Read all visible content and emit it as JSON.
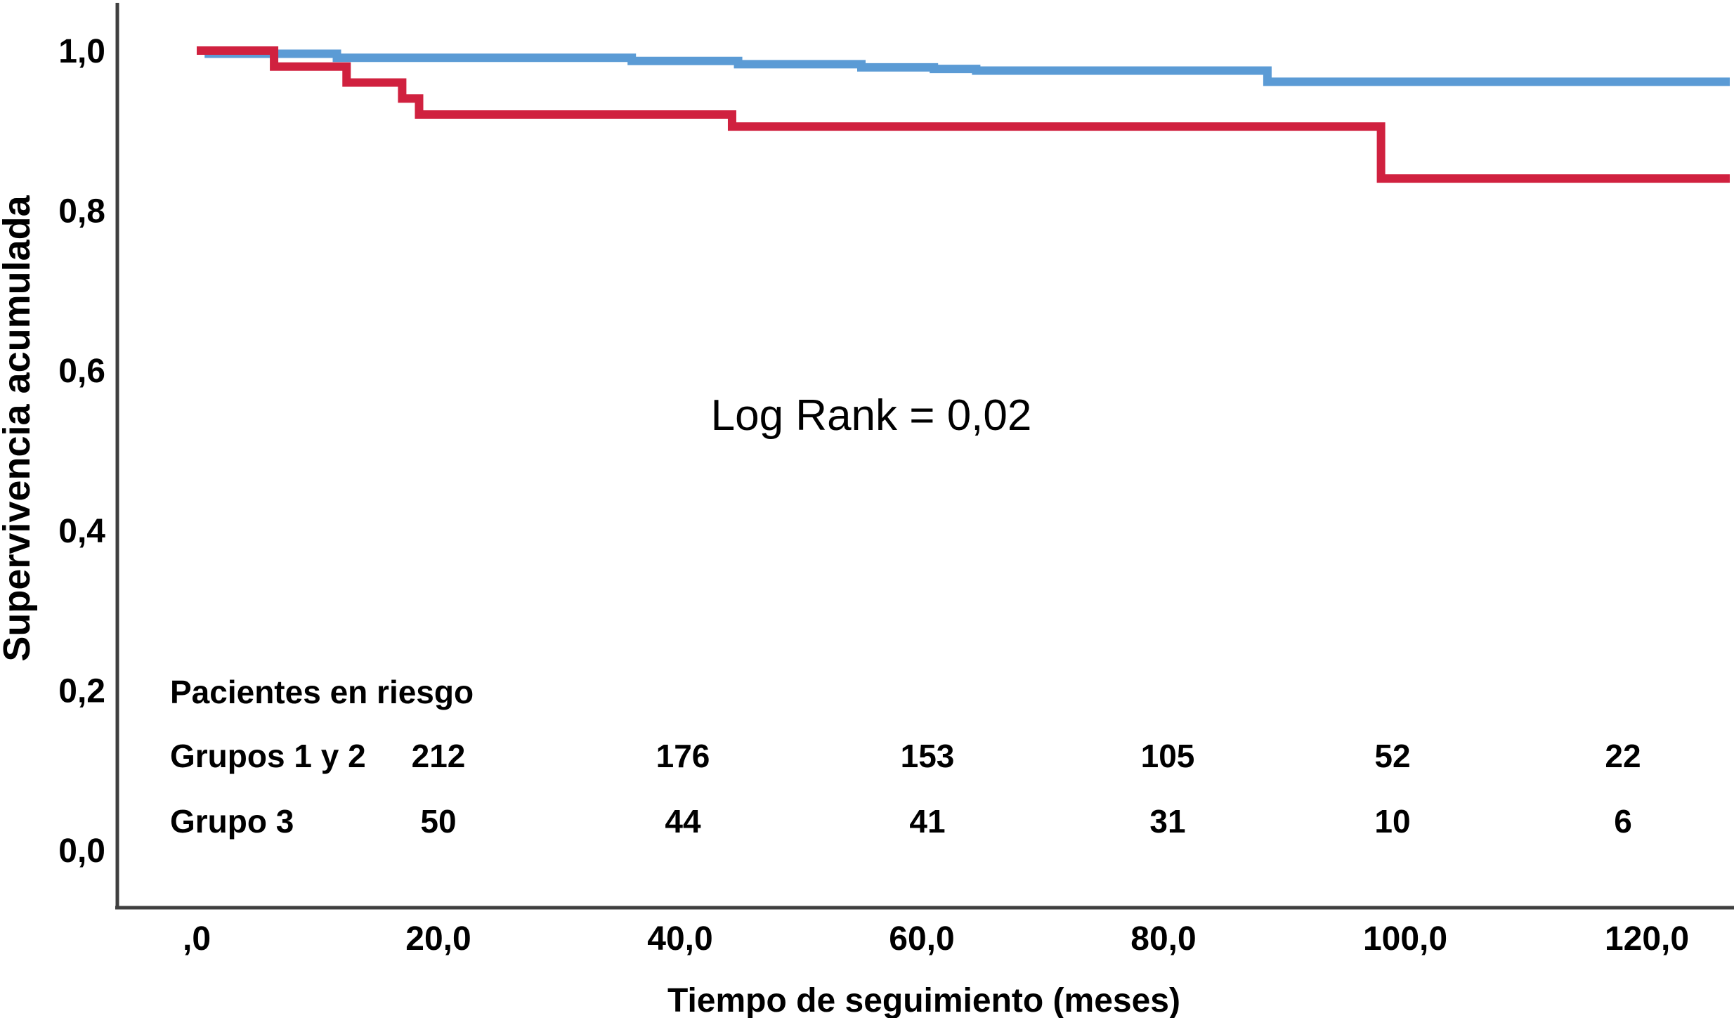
{
  "chart_data": {
    "type": "line",
    "subtype": "kaplan-meier-step",
    "title": "",
    "xlabel": "Tiempo de seguimiento (meses)",
    "ylabel": "Supervivencia acumulada",
    "annotation": "Log Rank = 0,02",
    "xlim": [
      0,
      127
    ],
    "ylim": [
      0.0,
      1.0
    ],
    "grid": false,
    "legend_position": "none",
    "x_ticks": {
      "values": [
        0,
        20,
        40,
        60,
        80,
        100,
        120
      ],
      "labels": [
        ",0",
        "20,0",
        "40,0",
        "60,0",
        "80,0",
        "100,0",
        "120,0"
      ]
    },
    "y_ticks": {
      "values": [
        0.0,
        0.2,
        0.4,
        0.6,
        0.8,
        1.0
      ],
      "labels": [
        "0,0",
        "0,2",
        "0,4",
        "0,6",
        "0,8",
        "1,0"
      ]
    },
    "series": [
      {
        "name": "Grupos 1 y 2",
        "color": "#5B9BD5",
        "step_points": [
          [
            0,
            1.0
          ],
          [
            1,
            0.996
          ],
          [
            11.6,
            0.991
          ],
          [
            36,
            0.987
          ],
          [
            44.8,
            0.983
          ],
          [
            55,
            0.979
          ],
          [
            61,
            0.977
          ],
          [
            64.5,
            0.975
          ],
          [
            88.6,
            0.961
          ]
        ],
        "end_x": 127
      },
      {
        "name": "Grupo 3",
        "color": "#D0213F",
        "step_points": [
          [
            0,
            1.0
          ],
          [
            6.4,
            0.98
          ],
          [
            12.4,
            0.96
          ],
          [
            17,
            0.94
          ],
          [
            18.4,
            0.92
          ],
          [
            44.3,
            0.905
          ],
          [
            98,
            0.84
          ]
        ],
        "end_x": 127
      }
    ],
    "risk_table": {
      "header": "Pacientes en riesgo",
      "times": [
        20,
        40,
        60,
        80,
        100,
        120
      ],
      "rows": [
        {
          "label": "Grupos 1 y 2",
          "counts": [
            "212",
            "176",
            "153",
            "105",
            "52",
            "22"
          ]
        },
        {
          "label": "Grupo 3",
          "counts": [
            "50",
            "44",
            "41",
            "31",
            "10",
            "6"
          ]
        }
      ]
    },
    "colors": {
      "axis": "#3f3f3f",
      "text": "#000000",
      "group12_line": "#5B9BD5",
      "group3_line": "#D0213F"
    }
  }
}
